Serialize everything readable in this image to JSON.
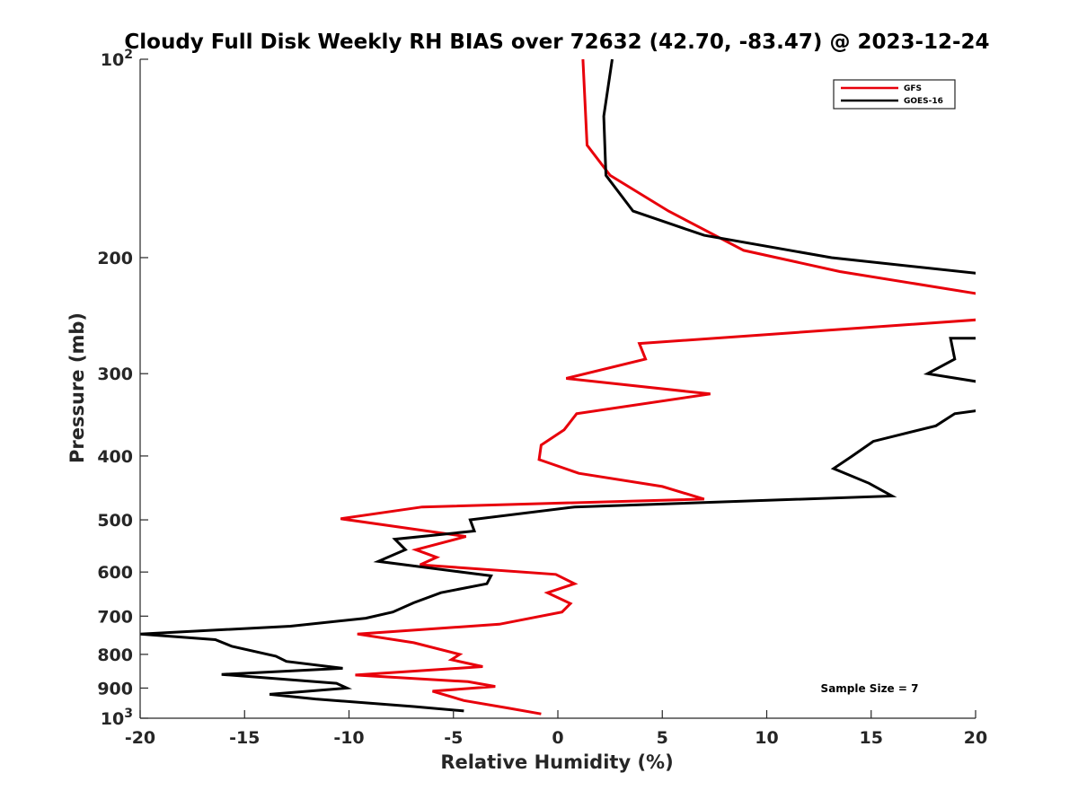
{
  "chart_data": {
    "type": "line",
    "title": "Cloudy Full Disk Weekly RH BIAS over 72632 (42.70, -83.47) @ 2023-12-24",
    "xlabel": "Relative Humidity (%)",
    "ylabel": "Pressure (mb)",
    "xlim": [
      -20,
      20
    ],
    "ylim": [
      100,
      1000
    ],
    "y_scale": "log",
    "y_reversed": true,
    "grid": false,
    "legend_position": "top-right",
    "x_ticks": [
      -20,
      -15,
      -10,
      -5,
      0,
      5,
      10,
      15,
      20
    ],
    "x_tick_labels": [
      "-20",
      "-15",
      "-10",
      "-5",
      "0",
      "5",
      "10",
      "15",
      "20"
    ],
    "y_ticks": [
      100,
      200,
      300,
      400,
      500,
      600,
      700,
      800,
      900,
      1000
    ],
    "y_tick_labels": [
      {
        "base": "10",
        "exp": "2"
      },
      {
        "base": "200",
        "exp": ""
      },
      {
        "base": "300",
        "exp": ""
      },
      {
        "base": "400",
        "exp": ""
      },
      {
        "base": "500",
        "exp": ""
      },
      {
        "base": "600",
        "exp": ""
      },
      {
        "base": "700",
        "exp": ""
      },
      {
        "base": "800",
        "exp": ""
      },
      {
        "base": "900",
        "exp": ""
      },
      {
        "base": "10",
        "exp": "3"
      }
    ],
    "annotation": "Sample Size = 7",
    "series": [
      {
        "name": "GFS",
        "color": "#e8000b",
        "points": [
          [
            1.2,
            100
          ],
          [
            1.4,
            135
          ],
          [
            2.5,
            150
          ],
          [
            5.3,
            170
          ],
          [
            8.9,
            195
          ],
          [
            13.5,
            210
          ],
          [
            20.5,
            228
          ],
          [
            20.5,
            248
          ],
          [
            3.9,
            270
          ],
          [
            4.2,
            285
          ],
          [
            0.4,
            305
          ],
          [
            7.3,
            322
          ],
          [
            0.9,
            345
          ],
          [
            0.3,
            365
          ],
          [
            -0.8,
            385
          ],
          [
            -0.9,
            405
          ],
          [
            1.0,
            425
          ],
          [
            5.0,
            445
          ],
          [
            7.0,
            465
          ],
          [
            -6.5,
            478
          ],
          [
            -10.4,
            498
          ],
          [
            -4.4,
            530
          ],
          [
            -6.8,
            555
          ],
          [
            -5.8,
            570
          ],
          [
            -6.6,
            585
          ],
          [
            -0.1,
            605
          ],
          [
            0.8,
            625
          ],
          [
            -0.5,
            645
          ],
          [
            0.6,
            670
          ],
          [
            0.2,
            690
          ],
          [
            -2.8,
            720
          ],
          [
            -9.6,
            745
          ],
          [
            -6.9,
            768
          ],
          [
            -4.7,
            800
          ],
          [
            -5.1,
            815
          ],
          [
            -3.6,
            835
          ],
          [
            -9.7,
            860
          ],
          [
            -4.3,
            880
          ],
          [
            -3.0,
            895
          ],
          [
            -6.0,
            910
          ],
          [
            -4.5,
            940
          ],
          [
            -2.4,
            965
          ],
          [
            -0.8,
            985
          ]
        ]
      },
      {
        "name": "GOES-16",
        "color": "#000000",
        "points": [
          [
            2.6,
            100
          ],
          [
            2.2,
            122
          ],
          [
            2.3,
            150
          ],
          [
            3.6,
            170
          ],
          [
            7.0,
            185
          ],
          [
            13.1,
            200
          ],
          [
            20.5,
            212
          ],
          [
            20.5,
            265
          ],
          [
            18.8,
            265
          ],
          [
            19.0,
            285
          ],
          [
            17.7,
            300
          ],
          [
            20.5,
            310
          ],
          [
            20.5,
            340
          ],
          [
            19.0,
            345
          ],
          [
            18.1,
            360
          ],
          [
            15.1,
            380
          ],
          [
            14.1,
            400
          ],
          [
            13.2,
            418
          ],
          [
            14.9,
            440
          ],
          [
            16.0,
            460
          ],
          [
            0.8,
            478
          ],
          [
            -4.2,
            500
          ],
          [
            -4.0,
            520
          ],
          [
            -7.8,
            535
          ],
          [
            -7.3,
            555
          ],
          [
            -8.6,
            578
          ],
          [
            -3.2,
            608
          ],
          [
            -3.4,
            625
          ],
          [
            -5.6,
            645
          ],
          [
            -6.9,
            668
          ],
          [
            -7.9,
            690
          ],
          [
            -9.2,
            705
          ],
          [
            -12.8,
            725
          ],
          [
            -20.0,
            745
          ],
          [
            -16.4,
            760
          ],
          [
            -15.6,
            778
          ],
          [
            -13.5,
            805
          ],
          [
            -13.0,
            820
          ],
          [
            -10.3,
            840
          ],
          [
            -16.1,
            858
          ],
          [
            -10.6,
            885
          ],
          [
            -10.1,
            900
          ],
          [
            -13.8,
            920
          ],
          [
            -11.6,
            935
          ],
          [
            -6.9,
            960
          ],
          [
            -4.5,
            975
          ]
        ]
      }
    ]
  }
}
